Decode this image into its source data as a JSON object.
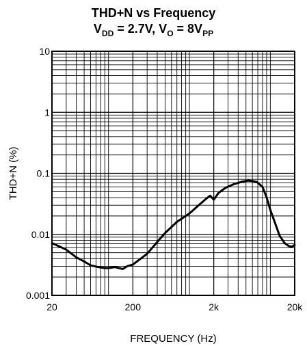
{
  "title_line1": "THD+N vs Frequency",
  "title_line2": {
    "p1": "V",
    "p1_sub": "DD",
    "p2": " = 2.7V, ",
    "p3": "V",
    "p3_sub": "O",
    "p4": " = 8V",
    "p4_sub": "PP"
  },
  "chart_data": {
    "type": "line",
    "xlabel": "FREQUENCY (Hz)",
    "ylabel": "THD+N (%)",
    "x_scale": "log",
    "y_scale": "log",
    "xlim": [
      20,
      20000
    ],
    "ylim": [
      0.001,
      10
    ],
    "grid": true,
    "x_tick_labels": [
      "20",
      "200",
      "2k",
      "20k"
    ],
    "x_tick_values": [
      20,
      200,
      2000,
      20000
    ],
    "y_tick_labels": [
      "0.001",
      "0.01",
      "0.1",
      "1",
      "10"
    ],
    "y_tick_values": [
      0.001,
      0.01,
      0.1,
      1,
      10
    ],
    "series": [
      {
        "x": [
          20,
          25,
          30,
          35,
          40,
          50,
          60,
          75,
          90,
          100,
          120,
          150,
          170,
          200,
          250,
          300,
          400,
          500,
          700,
          1000,
          1300,
          1600,
          1800,
          2000,
          2300,
          2800,
          3500,
          4500,
          5300,
          6000,
          6800,
          8000,
          9000,
          10000,
          11500,
          13000,
          15000,
          17000,
          18500,
          20000
        ],
        "y": [
          0.0072,
          0.0063,
          0.0056,
          0.0048,
          0.0042,
          0.0036,
          0.0031,
          0.0029,
          0.0028,
          0.0028,
          0.0029,
          0.0027,
          0.003,
          0.0032,
          0.004,
          0.0048,
          0.0075,
          0.0105,
          0.016,
          0.022,
          0.03,
          0.038,
          0.043,
          0.037,
          0.048,
          0.058,
          0.066,
          0.073,
          0.076,
          0.075,
          0.072,
          0.06,
          0.04,
          0.025,
          0.015,
          0.0095,
          0.0072,
          0.0064,
          0.0063,
          0.0067
        ]
      }
    ]
  }
}
